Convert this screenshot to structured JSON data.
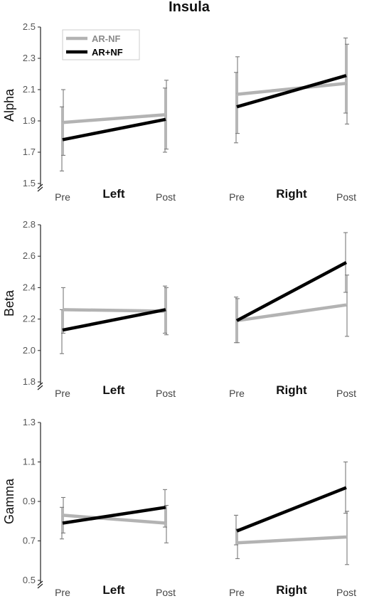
{
  "title": "Insula",
  "legend": [
    {
      "name": "AR-NF",
      "color": "#b3b3b3"
    },
    {
      "name": "AR+NF",
      "color": "#000000"
    }
  ],
  "chart_data": [
    {
      "type": "line",
      "panel": "alpha",
      "ylabel": "Alpha",
      "ylim": [
        1.5,
        2.5
      ],
      "yticks": [
        "1.5",
        "1.7",
        "1.9",
        "2.1",
        "2.3",
        "2.5"
      ],
      "x": [
        "Pre",
        "Post",
        "Pre",
        "Post"
      ],
      "groups": [
        "Left",
        "Right"
      ],
      "series": [
        {
          "name": "AR-NF",
          "segments": [
            {
              "group": "Left",
              "values": [
                1.89,
                1.94
              ],
              "err_low": [
                1.68,
                1.72
              ],
              "err_high": [
                2.1,
                2.16
              ]
            },
            {
              "group": "Right",
              "values": [
                2.07,
                2.14
              ],
              "err_low": [
                1.82,
                1.88
              ],
              "err_high": [
                2.31,
                2.39
              ]
            }
          ]
        },
        {
          "name": "AR+NF",
          "segments": [
            {
              "group": "Left",
              "values": [
                1.78,
                1.91
              ],
              "err_low": [
                1.58,
                1.7
              ],
              "err_high": [
                1.99,
                2.11
              ]
            },
            {
              "group": "Right",
              "values": [
                1.99,
                2.19
              ],
              "err_low": [
                1.76,
                1.95
              ],
              "err_high": [
                2.21,
                2.43
              ]
            }
          ]
        }
      ]
    },
    {
      "type": "line",
      "panel": "beta",
      "ylabel": "Beta",
      "ylim": [
        1.8,
        2.8
      ],
      "yticks": [
        "1.8",
        "2.0",
        "2.2",
        "2.4",
        "2.6",
        "2.8"
      ],
      "x": [
        "Pre",
        "Post",
        "Pre",
        "Post"
      ],
      "groups": [
        "Left",
        "Right"
      ],
      "series": [
        {
          "name": "AR-NF",
          "segments": [
            {
              "group": "Left",
              "values": [
                2.26,
                2.25
              ],
              "err_low": [
                2.11,
                2.1
              ],
              "err_high": [
                2.4,
                2.4
              ]
            },
            {
              "group": "Right",
              "values": [
                2.19,
                2.29
              ],
              "err_low": [
                2.05,
                2.09
              ],
              "err_high": [
                2.33,
                2.48
              ]
            }
          ]
        },
        {
          "name": "AR+NF",
          "segments": [
            {
              "group": "Left",
              "values": [
                2.13,
                2.26
              ],
              "err_low": [
                1.98,
                2.11
              ],
              "err_high": [
                2.26,
                2.41
              ]
            },
            {
              "group": "Right",
              "values": [
                2.19,
                2.56
              ],
              "err_low": [
                2.05,
                2.37
              ],
              "err_high": [
                2.34,
                2.75
              ]
            }
          ]
        }
      ]
    },
    {
      "type": "line",
      "panel": "gamma",
      "ylabel": "Gamma",
      "ylim": [
        0.5,
        1.3
      ],
      "yticks": [
        "0.5",
        "0.7",
        "0.9",
        "1.1",
        "1.3"
      ],
      "x": [
        "Pre",
        "Post",
        "Pre",
        "Post"
      ],
      "groups": [
        "Left",
        "Right"
      ],
      "series": [
        {
          "name": "AR-NF",
          "segments": [
            {
              "group": "Left",
              "values": [
                0.83,
                0.79
              ],
              "err_low": [
                0.74,
                0.69
              ],
              "err_high": [
                0.92,
                0.88
              ]
            },
            {
              "group": "Right",
              "values": [
                0.69,
                0.72
              ],
              "err_low": [
                0.61,
                0.58
              ],
              "err_high": [
                0.76,
                0.85
              ]
            }
          ]
        },
        {
          "name": "AR+NF",
          "segments": [
            {
              "group": "Left",
              "values": [
                0.79,
                0.87
              ],
              "err_low": [
                0.71,
                0.77
              ],
              "err_high": [
                0.87,
                0.96
              ]
            },
            {
              "group": "Right",
              "values": [
                0.75,
                0.97
              ],
              "err_low": [
                0.68,
                0.84
              ],
              "err_high": [
                0.83,
                1.1
              ]
            }
          ]
        }
      ]
    }
  ]
}
